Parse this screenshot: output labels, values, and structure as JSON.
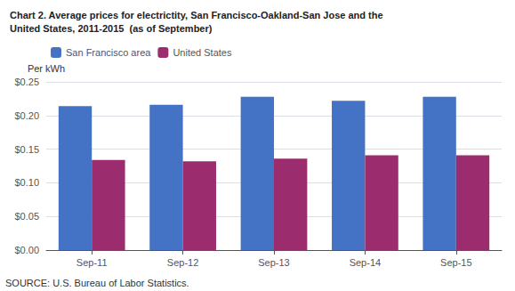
{
  "chart_data": {
    "type": "bar",
    "title": "Chart 2. Average prices for electrictity, San Francisco-Oakland-San Jose and the\nUnited States, 2011-2015  (as of September)",
    "ylabel": "Per kWh",
    "annotations": [
      "SOURCE: U.S. Bureau of Labor Statistics."
    ],
    "categories": [
      "Sep-11",
      "Sep-12",
      "Sep-13",
      "Sep-14",
      "Sep-15"
    ],
    "series": [
      {
        "name": "San Francisco area",
        "color": "#4472C4",
        "values": [
          0.214,
          0.216,
          0.228,
          0.222,
          0.228
        ]
      },
      {
        "name": "United States",
        "color": "#9B2D6F",
        "values": [
          0.134,
          0.132,
          0.136,
          0.141,
          0.141
        ]
      }
    ],
    "ylim": [
      0,
      0.25
    ],
    "yticks": [
      {
        "value": 0.0,
        "label": "$0.00"
      },
      {
        "value": 0.05,
        "label": "$0.05"
      },
      {
        "value": 0.1,
        "label": "$0.10"
      },
      {
        "value": 0.15,
        "label": "$0.15"
      },
      {
        "value": 0.2,
        "label": "$0.20"
      },
      {
        "value": 0.25,
        "label": "$0.25"
      }
    ],
    "grid": true,
    "legend": "upper left"
  }
}
